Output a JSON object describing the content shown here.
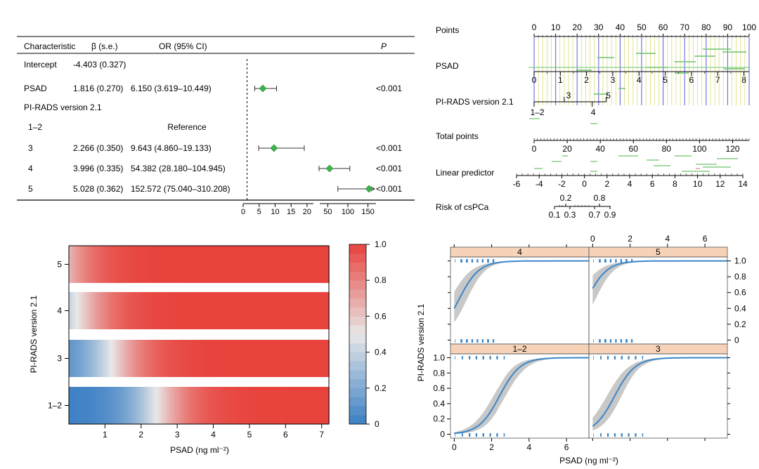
{
  "forest": {
    "headers": {
      "characteristic": "Characteristic",
      "beta": "β (s.e.)",
      "or": "OR (95% CI)",
      "p": "P"
    },
    "rows": [
      {
        "label": "Intercept",
        "beta": "-4.403 (0.327)",
        "or": "",
        "p": ""
      },
      {
        "label": "PSAD",
        "beta": "1.816 (0.270)",
        "or": "6.150 (3.619–10.449)",
        "p": "<0.001"
      },
      {
        "label": "PI-RADS version 2.1",
        "beta": "",
        "or": "",
        "p": ""
      },
      {
        "label": "1–2",
        "beta": "",
        "or": "Reference",
        "p": ""
      },
      {
        "label": "3",
        "beta": "2.266 (0.350)",
        "or": "9.643 (4.860–19.133)",
        "p": "<0.001"
      },
      {
        "label": "4",
        "beta": "3.996 (0.335)",
        "or": "54.382 (28.180–104.945)",
        "p": "<0.001"
      },
      {
        "label": "5",
        "beta": "5.028 (0.362)",
        "or": "152.572 (75.040–310.208)",
        "p": "<0.001"
      }
    ],
    "ticks_left": [
      "0",
      "5",
      "10",
      "15",
      "20"
    ],
    "ticks_right": [
      "50",
      "100",
      "150"
    ],
    "point_color": "#3cb44b"
  },
  "nomogram": {
    "rows": [
      {
        "label": "Points",
        "ticks": [
          "0",
          "10",
          "20",
          "30",
          "40",
          "50",
          "60",
          "70",
          "80",
          "90",
          "100"
        ]
      },
      {
        "label": "PSAD",
        "ticks": [
          "0",
          "1",
          "2",
          "3",
          "4",
          "5",
          "6",
          "7",
          "8"
        ]
      },
      {
        "label": "PI-RADS version 2.1",
        "ticks": [
          "1–2",
          "3",
          "4",
          "5"
        ]
      },
      {
        "label": "Total points",
        "ticks": [
          "0",
          "20",
          "40",
          "60",
          "80",
          "100",
          "120"
        ]
      },
      {
        "label": "Linear predictor",
        "ticks": [
          "-6",
          "-4",
          "-2",
          "0",
          "2",
          "4",
          "6",
          "8",
          "10",
          "12",
          "14"
        ]
      },
      {
        "label": "Risk of csPCa",
        "ticks": [
          "0.1",
          "0.3",
          "0.7",
          "0.9",
          "0.2",
          "0.8"
        ]
      }
    ]
  },
  "chart_data": [
    {
      "type": "table",
      "title": "",
      "columns": [
        "Characteristic",
        "β (s.e.)",
        "OR (95% CI)",
        "P"
      ],
      "rows": [
        [
          "Intercept",
          "-4.403 (0.327)",
          "",
          ""
        ],
        [
          "PSAD",
          "1.816 (0.270)",
          "6.150 (3.619–10.449)",
          "<0.001"
        ],
        [
          "PI-RADS version 2.1",
          "",
          "",
          ""
        ],
        [
          "1–2",
          "",
          "Reference",
          ""
        ],
        [
          "3",
          "2.266 (0.350)",
          "9.643 (4.860–19.133)",
          "<0.001"
        ],
        [
          "4",
          "3.996 (0.335)",
          "54.382 (28.180–104.945)",
          "<0.001"
        ],
        [
          "5",
          "5.028 (0.362)",
          "152.572 (75.040–310.208)",
          "<0.001"
        ]
      ],
      "forest_points": [
        {
          "label": "PSAD",
          "or": 6.15,
          "lo": 3.619,
          "hi": 10.449
        },
        {
          "label": "3",
          "or": 9.643,
          "lo": 4.86,
          "hi": 19.133
        },
        {
          "label": "4",
          "or": 54.382,
          "lo": 28.18,
          "hi": 104.945
        },
        {
          "label": "5",
          "or": 152.572,
          "lo": 75.04,
          "hi": 310.208
        }
      ]
    },
    {
      "type": "heatmap",
      "xlabel": "PSAD (ng ml⁻²)",
      "ylabel": "PI-RADS version 2.1",
      "categories": [
        "1–2",
        "3",
        "4",
        "5"
      ],
      "xlim": [
        0,
        7.2
      ],
      "x_ticks": [
        "1",
        "2",
        "3",
        "4",
        "5",
        "6",
        "7"
      ],
      "colorbar_ticks": [
        "0",
        "0.2",
        "0.4",
        "0.6",
        "0.8",
        "1.0"
      ],
      "intercept": -4.403,
      "slope": 1.816,
      "offsets": [
        0,
        2.266,
        3.996,
        5.028
      ],
      "low_color": "#3a7fc4",
      "mid_color": "#e8e8e8",
      "high_color": "#e8423c"
    },
    {
      "type": "line",
      "xlabel": "PSAD (ng ml⁻²)",
      "ylabel": "PI-RADS version 2.1",
      "panels": [
        {
          "name": "4",
          "offset": 3.996
        },
        {
          "name": "5",
          "offset": 5.028
        },
        {
          "name": "1–2",
          "offset": 0
        },
        {
          "name": "3",
          "offset": 2.266
        }
      ],
      "x_ticks": [
        "0",
        "2",
        "4",
        "6"
      ],
      "y_ticks": [
        "0",
        "0.2",
        "0.4",
        "0.6",
        "0.8",
        "1.0"
      ],
      "xlim": [
        -0.2,
        7.2
      ],
      "ylim": [
        -0.05,
        1.05
      ],
      "line_color": "#3a86c8",
      "band_color": "#c8c8c8",
      "strip_color": "#f6d2b8"
    }
  ]
}
